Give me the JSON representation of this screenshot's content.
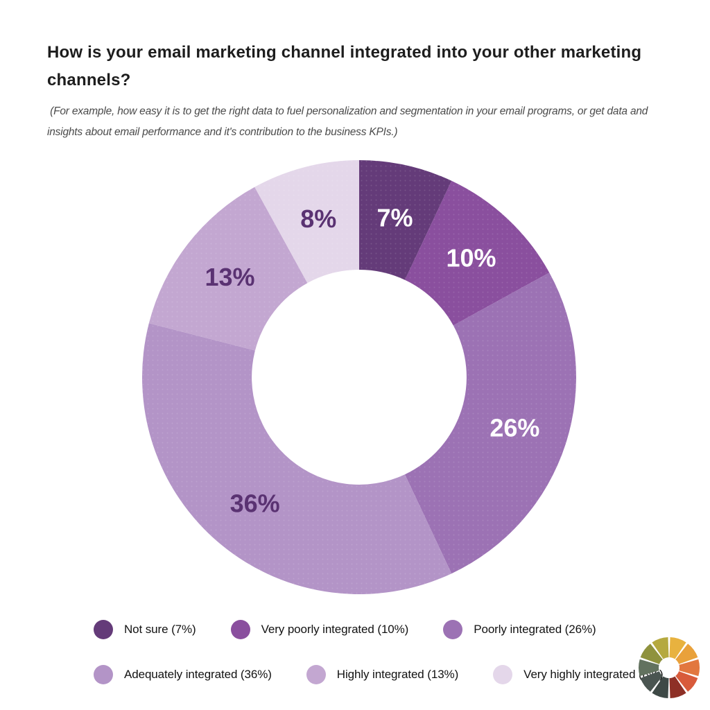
{
  "header": {
    "title": "How is your email marketing channel integrated into your other marketing channels?",
    "subtitle": " (For example, how easy it is to get the right data to fuel personalization and segmentation in your email programs, or get data and insights about email performance and it's contribution to the business KPIs.)"
  },
  "chart_data": {
    "type": "pie",
    "variant": "donut",
    "title": "How is your email marketing channel integrated into your other marketing channels?",
    "start_angle_deg": 0,
    "direction": "clockwise",
    "inner_radius_ratio": 0.495,
    "segments": [
      {
        "label": "Not sure",
        "value": 7,
        "display": "7%",
        "color": "#643B79",
        "label_color": "#FFFFFF"
      },
      {
        "label": "Very poorly integrated",
        "value": 10,
        "display": "10%",
        "color": "#8A4F9E",
        "label_color": "#FFFFFF"
      },
      {
        "label": "Poorly integrated",
        "value": 26,
        "display": "26%",
        "color": "#9C72B4",
        "label_color": "#FFFFFF"
      },
      {
        "label": "Adequately integrated",
        "value": 36,
        "display": "36%",
        "color": "#B394C7",
        "label_color": "#5A3272"
      },
      {
        "label": "Highly integrated",
        "value": 13,
        "display": "13%",
        "color": "#C3A7D1",
        "label_color": "#5A3272"
      },
      {
        "label": "Very highly integrated",
        "value": 8,
        "display": "8%",
        "color": "#E4D7EA",
        "label_color": "#5A3272"
      }
    ],
    "legend": {
      "position": "bottom",
      "items_per_row": 3,
      "items": [
        {
          "label": "Not sure (7%)",
          "color": "#643B79"
        },
        {
          "label": "Very poorly integrated (10%)",
          "color": "#8A4F9E"
        },
        {
          "label": "Poorly integrated (26%)",
          "color": "#9C72B4"
        },
        {
          "label": "Adequately integrated (36%)",
          "color": "#B394C7"
        },
        {
          "label": "Highly integrated (13%)",
          "color": "#C3A7D1"
        },
        {
          "label": "Very highly integrated (8%)",
          "color": "#E4D7EA"
        }
      ]
    }
  },
  "logo": {
    "name": "color-wheel",
    "segment_colors": [
      "#E8B23F",
      "#E9A13B",
      "#E2773F",
      "#D85B3B",
      "#8E3026",
      "#3E4946",
      "#4A5551",
      "#62725F",
      "#8F923D",
      "#B5A93F"
    ]
  }
}
